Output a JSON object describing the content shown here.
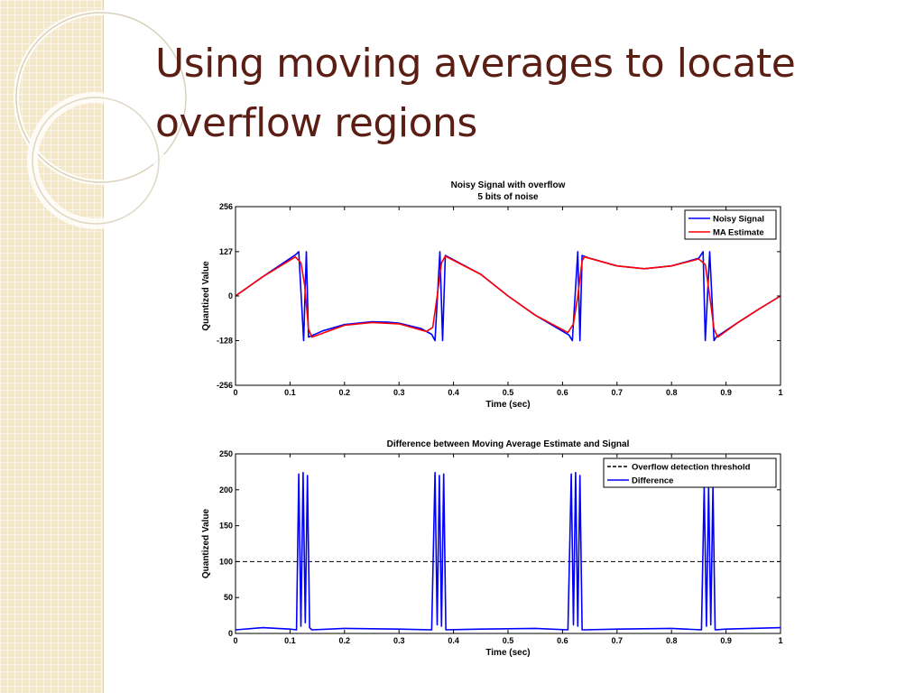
{
  "slide": {
    "title_line1": "Using moving averages to locate",
    "title_line2": "overflow regions"
  },
  "chart_data": [
    {
      "type": "line",
      "title": "Noisy Signal with overflow",
      "subtitle": "5 bits of noise",
      "xlabel": "Time (sec)",
      "ylabel": "Quantized Value",
      "xlim": [
        0,
        1
      ],
      "ylim": [
        -256,
        256
      ],
      "xticks": [
        0,
        0.1,
        0.2,
        0.3,
        0.4,
        0.5,
        0.6,
        0.7,
        0.8,
        0.9,
        1
      ],
      "xtick_labels": [
        "0",
        "0.1",
        "0.2",
        "0.3",
        "0.4",
        "0.5",
        "0.6",
        "0.7",
        "0.8",
        "0.9",
        "1"
      ],
      "yticks": [
        -256,
        -128,
        0,
        127,
        256
      ],
      "ytick_labels": [
        "-256",
        "-128",
        "0",
        "127",
        "256"
      ],
      "legend_position": "top-right",
      "grid": false,
      "series": [
        {
          "name": "Noisy Signal",
          "color": "#0000ff",
          "x": [
            0,
            0.05,
            0.11,
            0.116,
            0.125,
            0.13,
            0.134,
            0.16,
            0.2,
            0.25,
            0.28,
            0.3,
            0.34,
            0.36,
            0.366,
            0.375,
            0.38,
            0.385,
            0.45,
            0.5,
            0.55,
            0.612,
            0.618,
            0.628,
            0.632,
            0.636,
            0.65,
            0.7,
            0.75,
            0.8,
            0.85,
            0.858,
            0.862,
            0.87,
            0.878,
            0.882,
            0.92,
            0.96,
            1.0
          ],
          "y": [
            0,
            55,
            118,
            127,
            -128,
            127,
            -118,
            -100,
            -82,
            -74,
            -75,
            -78,
            -93,
            -110,
            -128,
            127,
            -128,
            116,
            62,
            0,
            -55,
            -112,
            -128,
            127,
            -128,
            116,
            108,
            86,
            78,
            86,
            108,
            127,
            -128,
            127,
            -128,
            -118,
            -78,
            -38,
            0
          ]
        },
        {
          "name": "MA Estimate",
          "color": "#ff0000",
          "x": [
            0,
            0.05,
            0.11,
            0.12,
            0.127,
            0.134,
            0.14,
            0.2,
            0.25,
            0.3,
            0.35,
            0.362,
            0.37,
            0.378,
            0.385,
            0.45,
            0.5,
            0.55,
            0.61,
            0.62,
            0.628,
            0.636,
            0.64,
            0.7,
            0.75,
            0.8,
            0.85,
            0.862,
            0.87,
            0.878,
            0.885,
            0.92,
            0.96,
            1.0
          ],
          "y": [
            0,
            55,
            112,
            95,
            30,
            -95,
            -118,
            -84,
            -76,
            -80,
            -102,
            -90,
            0,
            95,
            114,
            62,
            0,
            -55,
            -105,
            -80,
            0,
            100,
            112,
            86,
            78,
            86,
            106,
            90,
            0,
            -95,
            -118,
            -78,
            -38,
            0
          ]
        }
      ]
    },
    {
      "type": "line",
      "title": "Difference between Moving Average Estimate and Signal",
      "xlabel": "Time (sec)",
      "ylabel": "Quantized Value",
      "xlim": [
        0,
        1
      ],
      "ylim": [
        0,
        250
      ],
      "xticks": [
        0,
        0.1,
        0.2,
        0.3,
        0.4,
        0.5,
        0.6,
        0.7,
        0.8,
        0.9,
        1
      ],
      "xtick_labels": [
        "0",
        "0.1",
        "0.2",
        "0.3",
        "0.4",
        "0.5",
        "0.6",
        "0.7",
        "0.8",
        "0.9",
        "1"
      ],
      "yticks": [
        0,
        50,
        100,
        150,
        200,
        250
      ],
      "ytick_labels": [
        "0",
        "50",
        "100",
        "150",
        "200",
        "250"
      ],
      "legend_position": "top-right",
      "grid": false,
      "series": [
        {
          "name": "Overflow detection threshold",
          "color": "#000000",
          "dashed": true,
          "x": [
            0,
            1
          ],
          "y": [
            100,
            100
          ]
        },
        {
          "name": "Difference",
          "color": "#0000ff",
          "x": [
            0,
            0.05,
            0.1,
            0.112,
            0.116,
            0.12,
            0.124,
            0.128,
            0.132,
            0.136,
            0.14,
            0.2,
            0.3,
            0.36,
            0.366,
            0.37,
            0.374,
            0.378,
            0.382,
            0.386,
            0.45,
            0.55,
            0.61,
            0.616,
            0.62,
            0.624,
            0.628,
            0.632,
            0.636,
            0.64,
            0.7,
            0.8,
            0.855,
            0.86,
            0.864,
            0.868,
            0.872,
            0.876,
            0.88,
            0.9,
            1.0
          ],
          "y": [
            5,
            8,
            6,
            5,
            222,
            10,
            224,
            15,
            220,
            8,
            5,
            7,
            6,
            5,
            224,
            12,
            220,
            10,
            222,
            5,
            6,
            7,
            5,
            222,
            12,
            224,
            10,
            220,
            5,
            5,
            6,
            7,
            5,
            205,
            10,
            205,
            12,
            205,
            5,
            6,
            8
          ]
        }
      ]
    }
  ]
}
